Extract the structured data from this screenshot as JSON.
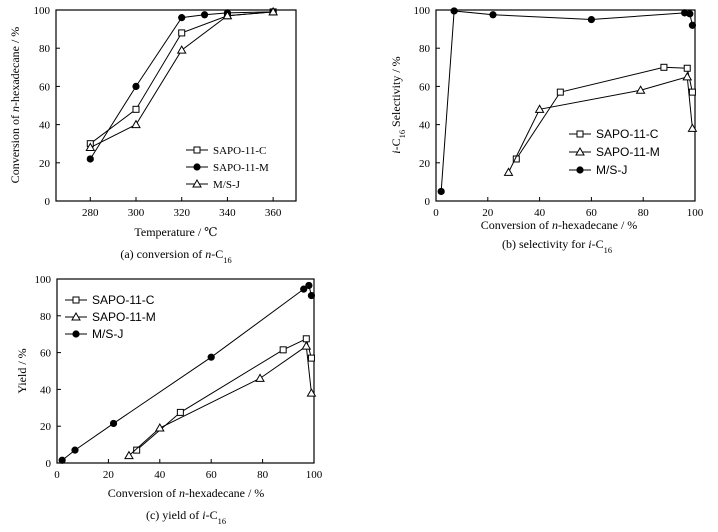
{
  "chart_data": [
    {
      "id": "a",
      "type": "line",
      "caption": "(a) conversion of n-C16",
      "caption_parts": [
        "(a) conversion of ",
        "n",
        "-C",
        "16"
      ],
      "xlabel": "Temperature / ℃",
      "ylabel_parts": [
        "Conversion of ",
        "n",
        "-hexadecane / %"
      ],
      "xlim": [
        265,
        370
      ],
      "ylim": [
        0,
        100
      ],
      "xticks": [
        280,
        300,
        320,
        340,
        360
      ],
      "yticks": [
        0,
        20,
        40,
        60,
        80,
        100
      ],
      "legend_position": "bottom-right",
      "grid": false,
      "series": [
        {
          "name": "SAPO-11-C",
          "marker": "square",
          "points": [
            [
              280,
              30
            ],
            [
              300,
              48
            ],
            [
              320,
              88
            ],
            [
              340,
              97
            ],
            [
              360,
              99
            ]
          ]
        },
        {
          "name": "SAPO-11-M",
          "marker": "circle",
          "points": [
            [
              280,
              22
            ],
            [
              300,
              60
            ],
            [
              320,
              96
            ],
            [
              330,
              97.5
            ],
            [
              340,
              98.5
            ],
            [
              360,
              99
            ]
          ]
        },
        {
          "name": "M/S-J",
          "marker": "triangle",
          "points": [
            [
              280,
              28
            ],
            [
              300,
              40
            ],
            [
              320,
              79
            ],
            [
              340,
              97
            ],
            [
              360,
              99
            ]
          ]
        }
      ]
    },
    {
      "id": "b",
      "type": "line",
      "caption": "(b) selectivity for i-C16",
      "caption_parts": [
        "(b) selectivity for ",
        "i",
        "-C",
        "16"
      ],
      "xlabel_parts": [
        "Conversion of ",
        "n",
        "-hexadecane / %"
      ],
      "ylabel_parts": [
        "i",
        "-C",
        "16",
        " Selectivity / %"
      ],
      "xlim": [
        0,
        100
      ],
      "ylim": [
        0,
        100
      ],
      "xticks": [
        0,
        20,
        40,
        60,
        80,
        100
      ],
      "yticks": [
        0,
        20,
        40,
        60,
        80,
        100
      ],
      "legend_position": "bottom-right",
      "grid": false,
      "series": [
        {
          "name": "SAPO-11-C",
          "marker": "square",
          "points": [
            [
              31,
              22
            ],
            [
              48,
              57
            ],
            [
              88,
              70
            ],
            [
              97,
              69.5
            ],
            [
              99,
              57
            ]
          ]
        },
        {
          "name": "SAPO-11-M",
          "marker": "triangle",
          "points": [
            [
              28,
              15
            ],
            [
              40,
              48
            ],
            [
              79,
              58
            ],
            [
              97,
              65
            ],
            [
              99,
              38
            ]
          ]
        },
        {
          "name": "M/S-J",
          "marker": "circle",
          "points": [
            [
              2,
              5
            ],
            [
              7,
              99.5
            ],
            [
              22,
              97.5
            ],
            [
              60,
              95
            ],
            [
              96,
              98.5
            ],
            [
              98,
              98
            ],
            [
              99,
              92
            ]
          ]
        }
      ]
    },
    {
      "id": "c",
      "type": "line",
      "caption": "(c) yield of i-C16",
      "caption_parts": [
        "(c) yield of ",
        "i",
        "-C",
        "16"
      ],
      "xlabel_parts": [
        "Conversion of ",
        "n",
        "-hexadecane / %"
      ],
      "ylabel": "Yield / %",
      "xlim": [
        0,
        100
      ],
      "ylim": [
        0,
        100
      ],
      "xticks": [
        0,
        20,
        40,
        60,
        80,
        100
      ],
      "yticks": [
        0,
        20,
        40,
        60,
        80,
        100
      ],
      "legend_position": "top-left",
      "grid": false,
      "series": [
        {
          "name": "SAPO-11-C",
          "marker": "square",
          "points": [
            [
              31,
              7
            ],
            [
              48,
              27.5
            ],
            [
              88,
              61.5
            ],
            [
              97,
              67.5
            ],
            [
              99,
              57
            ]
          ]
        },
        {
          "name": "SAPO-11-M",
          "marker": "triangle",
          "points": [
            [
              28,
              4
            ],
            [
              40,
              19
            ],
            [
              79,
              46
            ],
            [
              97,
              63.5
            ],
            [
              99,
              38
            ]
          ]
        },
        {
          "name": "M/S-J",
          "marker": "circle",
          "points": [
            [
              2,
              1.5
            ],
            [
              7,
              7
            ],
            [
              22,
              21.5
            ],
            [
              60,
              57.5
            ],
            [
              96,
              94.5
            ],
            [
              98,
              96.5
            ],
            [
              99,
              91
            ]
          ]
        }
      ]
    }
  ]
}
